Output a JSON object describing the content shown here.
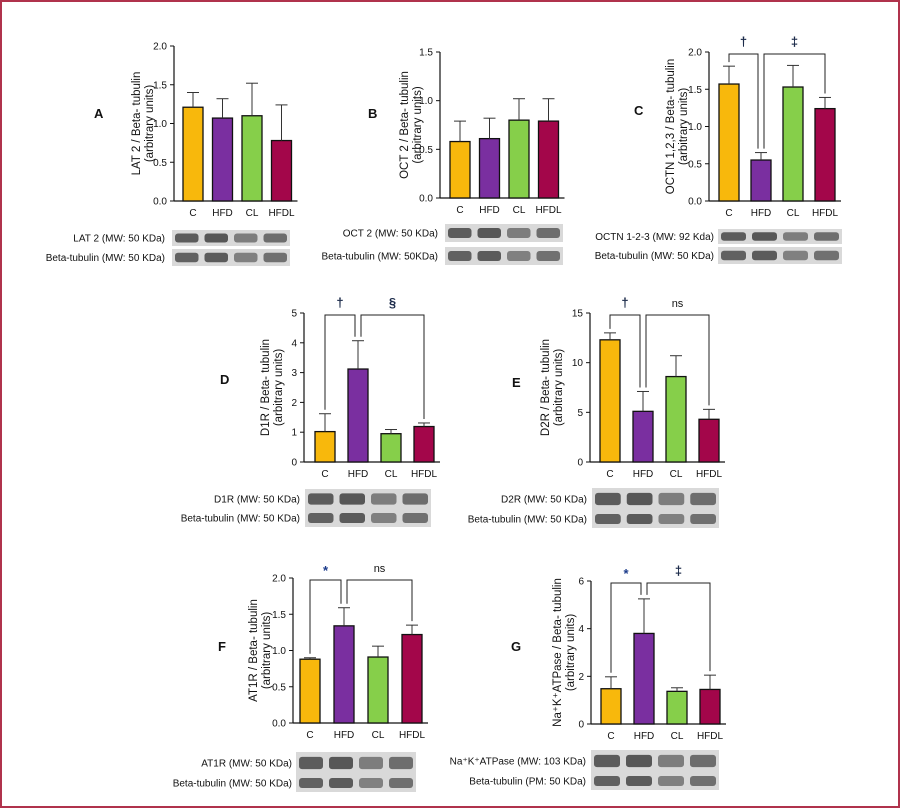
{
  "colors": {
    "frame": "#b0334c",
    "series": [
      "#f8b80c",
      "#7a2fa0",
      "#86cf4a",
      "#a3064a"
    ],
    "dagger": "#1c2b4a",
    "star": "#1a3a8a"
  },
  "chart_data": [
    {
      "id": "A",
      "type": "bar",
      "panel_label": "A",
      "ylabel_lines": [
        "LAT 2 / Beta- tubulin",
        "(arbitrary units)"
      ],
      "categories": [
        "C",
        "HFD",
        "CL",
        "HFDL"
      ],
      "values": [
        1.21,
        1.07,
        1.1,
        0.78
      ],
      "errors": [
        0.19,
        0.25,
        0.42,
        0.46
      ],
      "ylim": [
        0,
        2.0
      ],
      "ticks": [
        "0.0",
        "0.5",
        "1.0",
        "1.5",
        "2.0"
      ],
      "tick_values": [
        0,
        0.5,
        1.0,
        1.5,
        2.0
      ],
      "blot_labels": [
        "LAT 2 (MW: 50  KDa)",
        "Beta-tubulin (MW: 50 KDa)"
      ],
      "annotations": []
    },
    {
      "id": "B",
      "type": "bar",
      "panel_label": "B",
      "ylabel_lines": [
        "OCT 2 / Beta- tubulin",
        "(arbitrary units)"
      ],
      "categories": [
        "C",
        "HFD",
        "CL",
        "HFDL"
      ],
      "values": [
        0.58,
        0.61,
        0.8,
        0.79
      ],
      "errors": [
        0.21,
        0.21,
        0.22,
        0.23
      ],
      "ylim": [
        0,
        1.5
      ],
      "ticks": [
        "0.0",
        "0.5",
        "1.0",
        "1.5"
      ],
      "tick_values": [
        0,
        0.5,
        1.0,
        1.5
      ],
      "blot_labels": [
        "OCT 2 (MW: 50 KDa)",
        "Beta-tubulin (MW: 50KDa)"
      ],
      "annotations": []
    },
    {
      "id": "C",
      "type": "bar",
      "panel_label": "C",
      "ylabel_lines": [
        "OCTN 1,2,3 / Beta- tubulin",
        "(arbitrary units)"
      ],
      "categories": [
        "C",
        "HFD",
        "CL",
        "HFDL"
      ],
      "values": [
        1.57,
        0.55,
        1.53,
        1.24
      ],
      "errors": [
        0.24,
        0.1,
        0.29,
        0.15
      ],
      "ylim": [
        0,
        2.0
      ],
      "ticks": [
        "0.0",
        "0.5",
        "1.0",
        "1.5",
        "2.0"
      ],
      "tick_values": [
        0,
        0.5,
        1.0,
        1.5,
        2.0
      ],
      "blot_labels": [
        "OCTN 1-2-3 (MW: 92 Kda)",
        "Beta-tubulin (MW: 50 KDa)"
      ],
      "annotations": [
        {
          "from": 0,
          "to": 1,
          "symbol": "†",
          "style": "dagger"
        },
        {
          "from": 1,
          "to": 3,
          "symbol": "‡",
          "style": "dagger"
        }
      ]
    },
    {
      "id": "D",
      "type": "bar",
      "panel_label": "D",
      "ylabel_lines": [
        "D1R / Beta- tubulin",
        "(arbitrary units)"
      ],
      "categories": [
        "C",
        "HFD",
        "CL",
        "HFDL"
      ],
      "values": [
        1.02,
        3.12,
        0.95,
        1.19
      ],
      "errors": [
        0.6,
        0.95,
        0.14,
        0.12
      ],
      "ylim": [
        0,
        5
      ],
      "ticks": [
        "0",
        "1",
        "2",
        "3",
        "4",
        "5"
      ],
      "tick_values": [
        0,
        1,
        2,
        3,
        4,
        5
      ],
      "blot_labels": [
        "D1R (MW: 50  KDa)",
        "Beta-tubulin (MW: 50 KDa)"
      ],
      "annotations": [
        {
          "from": 0,
          "to": 1,
          "symbol": "†",
          "style": "dagger"
        },
        {
          "from": 1,
          "to": 3,
          "symbol": "§",
          "style": "dagger"
        }
      ]
    },
    {
      "id": "E",
      "type": "bar",
      "panel_label": "E",
      "ylabel_lines": [
        "D2R / Beta- tubulin",
        "(arbitrary units)"
      ],
      "categories": [
        "C",
        "HFD",
        "CL",
        "HFDL"
      ],
      "values": [
        12.3,
        5.1,
        8.6,
        4.3
      ],
      "errors": [
        0.7,
        2.0,
        2.1,
        1.0
      ],
      "ylim": [
        0,
        15
      ],
      "ticks": [
        "0",
        "5",
        "10",
        "15"
      ],
      "tick_values": [
        0,
        5,
        10,
        15
      ],
      "blot_labels": [
        "D2R (MW: 50  KDa)",
        "Beta-tubulin (MW: 50 KDa)"
      ],
      "annotations": [
        {
          "from": 0,
          "to": 1,
          "symbol": "†",
          "style": "dagger"
        },
        {
          "from": 1,
          "to": 3,
          "symbol": "ns",
          "style": "ns"
        }
      ]
    },
    {
      "id": "F",
      "type": "bar",
      "panel_label": "F",
      "ylabel_lines": [
        "AT1R / Beta- tubulin",
        "(arbitrary units)"
      ],
      "categories": [
        "C",
        "HFD",
        "CL",
        "HFDL"
      ],
      "values": [
        0.88,
        1.34,
        0.91,
        1.22
      ],
      "errors": [
        0.02,
        0.25,
        0.15,
        0.13
      ],
      "ylim": [
        0,
        2.0
      ],
      "ticks": [
        "0.0",
        "0.5",
        "1.0",
        "1.5",
        "2.0"
      ],
      "tick_values": [
        0,
        0.5,
        1.0,
        1.5,
        2.0
      ],
      "blot_labels": [
        "AT1R  (MW: 50  KDa)",
        "Beta-tubulin (MW: 50 KDa)"
      ],
      "annotations": [
        {
          "from": 0,
          "to": 1,
          "symbol": "*",
          "style": "star"
        },
        {
          "from": 1,
          "to": 3,
          "symbol": "ns",
          "style": "ns"
        }
      ]
    },
    {
      "id": "G",
      "type": "bar",
      "panel_label": "G",
      "ylabel_lines": [
        "Na⁺K⁺ATPase / Beta- tubulin",
        "(arbitrary units)"
      ],
      "categories": [
        "C",
        "HFD",
        "CL",
        "HFDL"
      ],
      "values": [
        1.48,
        3.8,
        1.37,
        1.45
      ],
      "errors": [
        0.5,
        1.45,
        0.15,
        0.6
      ],
      "ylim": [
        0,
        6
      ],
      "ticks": [
        "0",
        "2",
        "4",
        "6"
      ],
      "tick_values": [
        0,
        2,
        4,
        6
      ],
      "blot_labels": [
        "Na⁺K⁺ATPase (MW: 103 KDa)",
        "Beta-tubulin  (PM: 50 KDa)"
      ],
      "annotations": [
        {
          "from": 0,
          "to": 1,
          "symbol": "*",
          "style": "star"
        },
        {
          "from": 1,
          "to": 3,
          "symbol": "‡",
          "style": "dagger"
        }
      ]
    }
  ]
}
